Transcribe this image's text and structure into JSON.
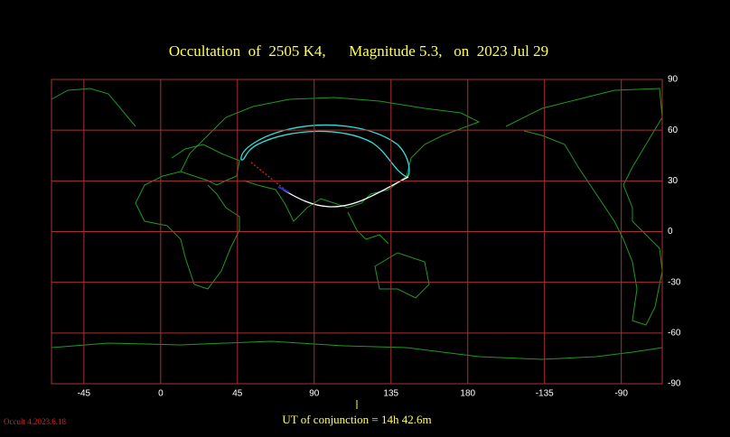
{
  "chart_data": {
    "type": "map",
    "title": "Occultation  of  2505 K4,      Magnitude 5.3,   on  2023 Jul 29",
    "xlim": [
      -64,
      294
    ],
    "ylim": [
      -90,
      90
    ],
    "xticks": [
      -45,
      0,
      45,
      90,
      135,
      180,
      {
        "value": 225,
        "label": "-135"
      },
      {
        "value": 270,
        "label": "-90"
      }
    ],
    "yticks": [
      90,
      60,
      30,
      0,
      -30,
      -60,
      -90
    ],
    "grid": true,
    "grid_color": "#a83232",
    "annotations": [
      "UT of conjunction = 14h 42.6m",
      "Occult 4.2023.6.18"
    ]
  }
}
